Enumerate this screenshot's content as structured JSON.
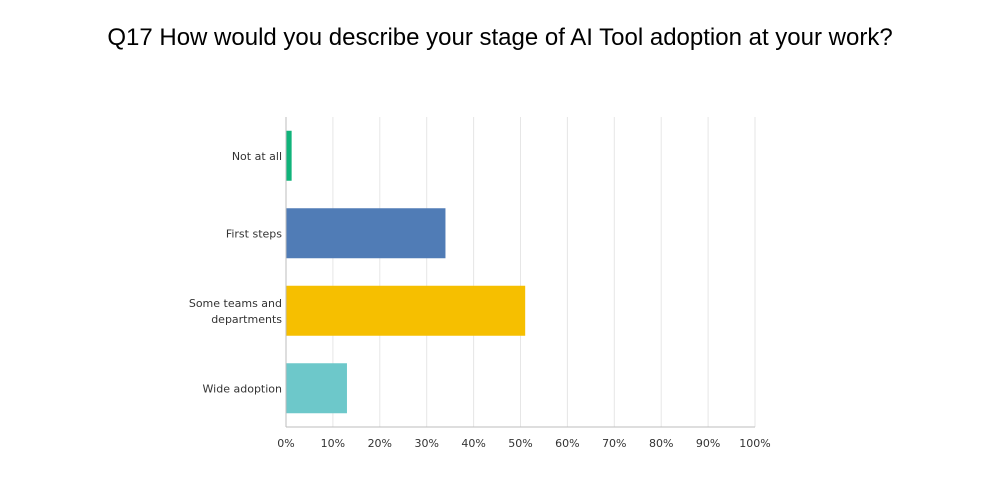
{
  "chart_data": {
    "type": "bar",
    "orientation": "horizontal",
    "title": "Q17 How would you describe your stage of AI Tool adoption at your work?",
    "categories": [
      {
        "label_lines": [
          "Not at all"
        ],
        "value": 1.2,
        "color": "#10b37a"
      },
      {
        "label_lines": [
          "First steps"
        ],
        "value": 34,
        "color": "#507cb6"
      },
      {
        "label_lines": [
          "Some teams and",
          "departments"
        ],
        "value": 51,
        "color": "#f6bf00"
      },
      {
        "label_lines": [
          "Wide adoption"
        ],
        "value": 13,
        "color": "#6dc8ca"
      }
    ],
    "x_ticks": [
      "0%",
      "10%",
      "20%",
      "30%",
      "40%",
      "50%",
      "60%",
      "70%",
      "80%",
      "90%",
      "100%"
    ],
    "xlim": [
      0,
      100
    ],
    "x_unit": "percent",
    "grid": true,
    "legend": "none"
  }
}
